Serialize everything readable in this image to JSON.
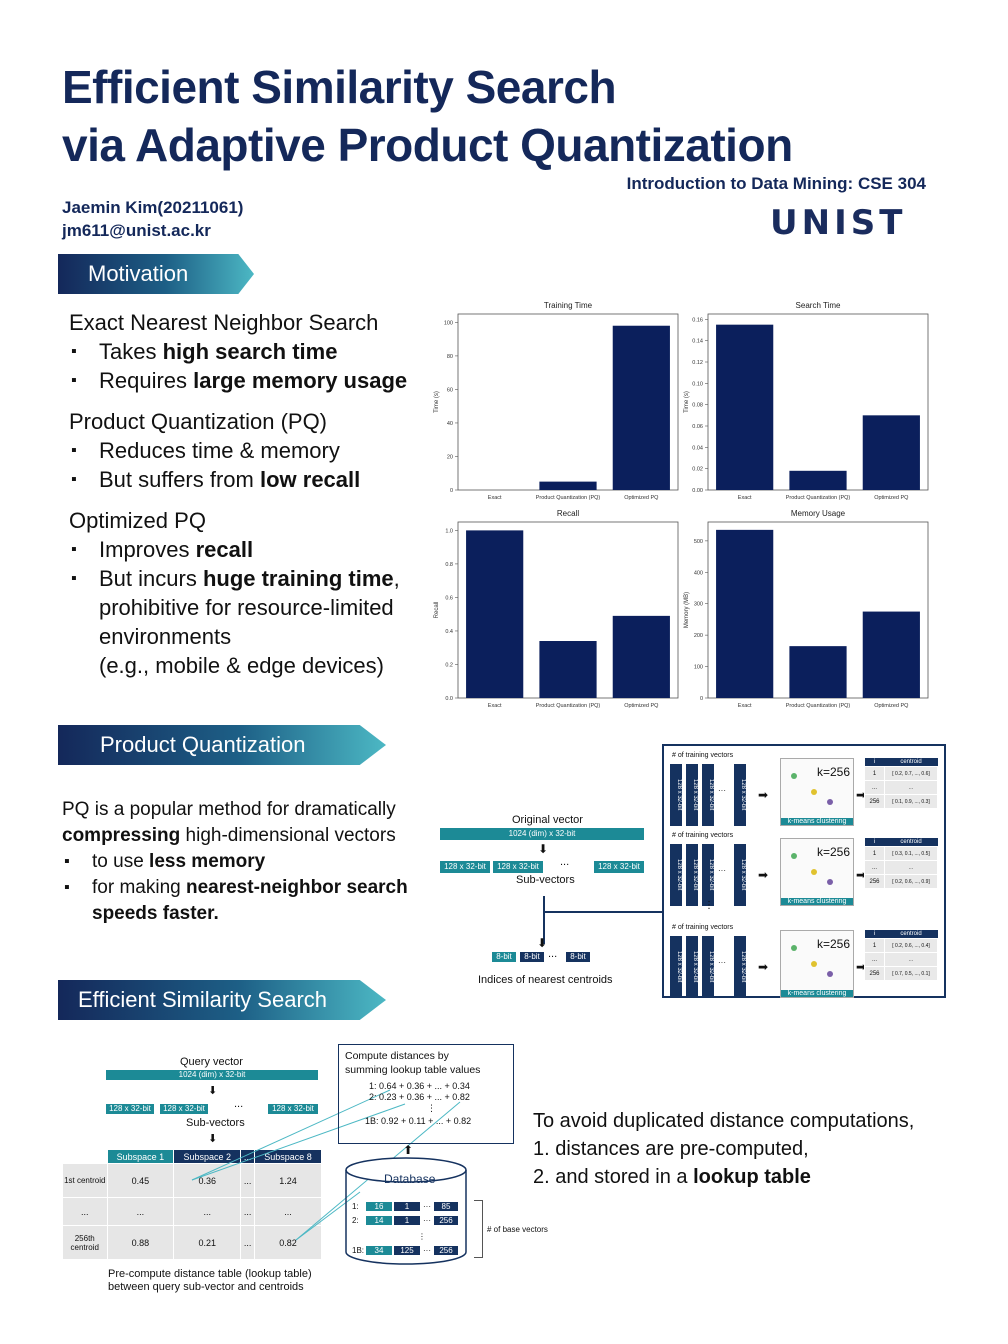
{
  "header": {
    "title_line1": "Efficient Similarity Search",
    "title_line2": "via Adaptive Product Quantization",
    "course": "Introduction to Data Mining: CSE 304",
    "author": "Jaemin Kim(20211061)",
    "email": "jm611@unist.ac.kr",
    "logo_text": "UNIST"
  },
  "sections": {
    "motivation": "Motivation",
    "pq": "Product Quantization",
    "ess": "Efficient Similarity Search"
  },
  "motivation": {
    "exact_h": "Exact Nearest Neighbor Search",
    "exact_1a": "Takes ",
    "exact_1b": "high search time",
    "exact_2a": "Requires ",
    "exact_2b": "large memory usage",
    "pq_h": "Product Quantization (PQ)",
    "pq_1": "Reduces time & memory",
    "pq_2a": "But suffers from ",
    "pq_2b": "low recall",
    "opq_h": "Optimized PQ",
    "opq_1a": "Improves ",
    "opq_1b": "recall",
    "opq_2a": "But incurs ",
    "opq_2b": "huge training time",
    "opq_2c": ",",
    "opq_2d": "prohibitive for resource-limited environments",
    "opq_2e": "(e.g., mobile & edge devices)"
  },
  "chart_data": [
    {
      "type": "bar",
      "title": "Training Time",
      "ylabel": "Time (s)",
      "categories": [
        "Exact",
        "Product Quantization (PQ)",
        "Optimized PQ"
      ],
      "values": [
        0,
        5,
        98
      ],
      "ylim": [
        0,
        105
      ],
      "yticks": [
        0,
        20,
        40,
        60,
        80,
        100
      ],
      "color": "#0b1f5c"
    },
    {
      "type": "bar",
      "title": "Search Time",
      "ylabel": "Time (s)",
      "categories": [
        "Exact",
        "Product Quantization (PQ)",
        "Optimized PQ"
      ],
      "values": [
        0.155,
        0.018,
        0.07
      ],
      "ylim": [
        0,
        0.165
      ],
      "yticks": [
        0.0,
        0.02,
        0.04,
        0.06,
        0.08,
        0.1,
        0.12,
        0.14,
        0.16
      ],
      "color": "#0b1f5c"
    },
    {
      "type": "bar",
      "title": "Recall",
      "ylabel": "Recall",
      "categories": [
        "Exact",
        "Product Quantization (PQ)",
        "Optimized PQ"
      ],
      "values": [
        1.0,
        0.34,
        0.49
      ],
      "ylim": [
        0,
        1.05
      ],
      "yticks": [
        0.0,
        0.2,
        0.4,
        0.6,
        0.8,
        1.0
      ],
      "color": "#0b1f5c"
    },
    {
      "type": "bar",
      "title": "Memory Usage",
      "ylabel": "Memory (MB)",
      "categories": [
        "Exact",
        "Product Quantization (PQ)",
        "Optimized PQ"
      ],
      "values": [
        535,
        165,
        275
      ],
      "ylim": [
        0,
        560
      ],
      "yticks": [
        0,
        100,
        200,
        300,
        400,
        500
      ],
      "color": "#0b1f5c"
    }
  ],
  "pq": {
    "p1": "PQ is a popular method for dramatically",
    "p2a": "compressing",
    "p2b": " high-dimensional vectors",
    "b1a": "to use ",
    "b1b": "less memory",
    "b2a": "for making ",
    "b2b": "nearest-neighbor search speeds faster.",
    "diagram": {
      "original": "Original vector",
      "orig_bar": "1024 (dim) x 32-bit",
      "sub": "128 x 32-bit",
      "dots": "...",
      "subvectors": "Sub-vectors",
      "byte": "8-bit",
      "indices": "Indices of nearest centroids",
      "num_train": "# of training vectors",
      "vdots": "⋮",
      "k": "k=256",
      "kmeans": "k-means clustering",
      "col_i": "i",
      "col_c": "centroid",
      "rows": [
        [
          [
            "1",
            "[ 0.2, 0.7, ..., 0.6]"
          ],
          [
            "...",
            "..."
          ],
          [
            "256",
            "[ 0.1, 0.9, ..., 0.3]"
          ]
        ],
        [
          [
            "1",
            "[ 0.3, 0.1, ..., 0.5]"
          ],
          [
            "...",
            "..."
          ],
          [
            "256",
            "[ 0.2, 0.6, ..., 0.9]"
          ]
        ],
        [
          [
            "1",
            "[ 0.2, 0.6, ..., 0.4]"
          ],
          [
            "...",
            "..."
          ],
          [
            "256",
            "[ 0.7, 0.5, ..., 0.1]"
          ]
        ]
      ]
    }
  },
  "ess": {
    "query": "Query vector",
    "q_bar": "1024 (dim) x 32-bit",
    "sub": "128 x 32-bit",
    "subvectors": "Sub-vectors",
    "dots": "...",
    "sub_headers": [
      "Subspace 1",
      "Subspace 2",
      "...",
      "Subspace 8"
    ],
    "row1_label": "1st centroid",
    "row1": [
      "0.45",
      "0.36",
      "...",
      "1.24"
    ],
    "row2_label": "...",
    "row2": [
      "...",
      "...",
      "...",
      "..."
    ],
    "row3_label": "256th centroid",
    "row3": [
      "0.88",
      "0.21",
      "...",
      "0.82"
    ],
    "caption1": "Pre-compute distance table (lookup table)",
    "caption2": "between query sub-vector and centroids",
    "compute_h1": "Compute distances by",
    "compute_h2": "summing lookup table values",
    "c1": "1:   0.64 + 0.36 + ... + 0.34",
    "c2": "2:   0.23 + 0.36 + ... + 0.82",
    "cdots": "⋮",
    "cB": "1B:  0.92 + 0.11 + ... + 0.82",
    "database": "Database",
    "db_rows": [
      [
        "1:",
        "16",
        "1",
        "85"
      ],
      [
        "2:",
        "14",
        "1",
        "256"
      ],
      [
        "1B:",
        "34",
        "125",
        "256"
      ]
    ],
    "base_vectors": "# of base vectors",
    "t1": "To avoid duplicated distance computations,",
    "t2": "1.   distances are pre-computed,",
    "t3a": "2.   and stored in a ",
    "t3b": "lookup table"
  }
}
